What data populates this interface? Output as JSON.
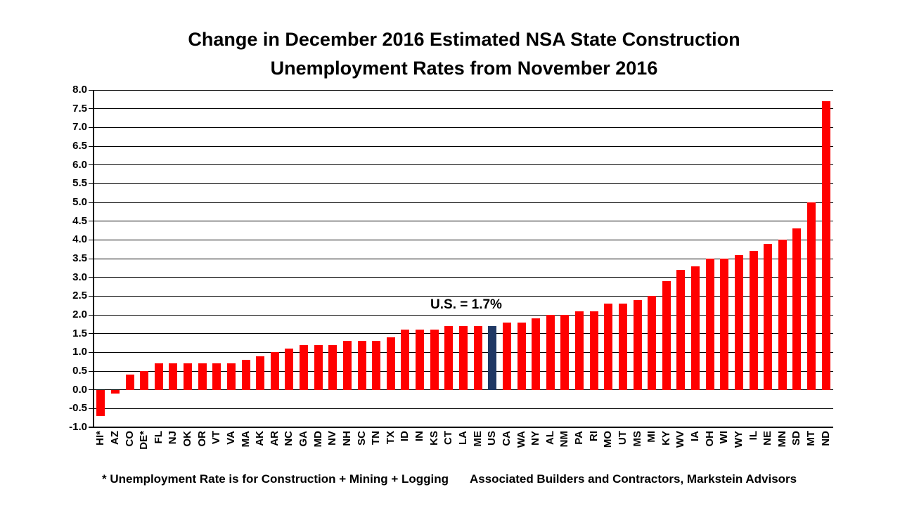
{
  "title": {
    "line1": "Change in December 2016 Estimated NSA State Construction",
    "line2": "Unemployment Rates from November 2016"
  },
  "chart_data": {
    "type": "bar",
    "title": "Change in December 2016 Estimated NSA State Construction Unemployment Rates from November 2016",
    "categories": [
      "HI*",
      "AZ",
      "CO",
      "DE*",
      "FL",
      "NJ",
      "OK",
      "OR",
      "VT",
      "VA",
      "MA",
      "AK",
      "AR",
      "NC",
      "GA",
      "MD",
      "NV",
      "NH",
      "SC",
      "TN",
      "TX",
      "ID",
      "IN",
      "KS",
      "CT",
      "LA",
      "ME",
      "US",
      "CA",
      "WA",
      "NY",
      "AL",
      "NM",
      "PA",
      "RI",
      "MO",
      "UT",
      "MS",
      "MI",
      "KY",
      "WV",
      "IA",
      "OH",
      "WI",
      "WY",
      "IL",
      "NE",
      "MN",
      "SD",
      "MT",
      "ND"
    ],
    "values": [
      -0.7,
      -0.1,
      0.4,
      0.5,
      0.7,
      0.7,
      0.7,
      0.7,
      0.7,
      0.7,
      0.8,
      0.9,
      1.0,
      1.1,
      1.2,
      1.2,
      1.2,
      1.3,
      1.3,
      1.3,
      1.4,
      1.6,
      1.6,
      1.6,
      1.7,
      1.7,
      1.7,
      1.7,
      1.8,
      1.8,
      1.9,
      2.0,
      2.0,
      2.1,
      2.1,
      2.3,
      2.3,
      2.4,
      2.5,
      2.9,
      3.2,
      3.3,
      3.5,
      3.5,
      3.6,
      3.7,
      3.9,
      4.0,
      4.3,
      5.0,
      7.7
    ],
    "xlabel": "",
    "ylabel": "",
    "ylim": [
      -1.0,
      8.0
    ],
    "ytick_step": 0.5,
    "grid": true,
    "legend": "none",
    "highlight_category": "US",
    "annotation": {
      "text": "U.S. = 1.7%",
      "attached_to": "US"
    },
    "colors": {
      "bar": "#ff0000",
      "highlight_bar": "#1f3864",
      "grid": "#000000",
      "text": "#000000",
      "background": "#ffffff"
    }
  },
  "footer": {
    "footnote": "* Unemployment Rate is for Construction + Mining + Logging",
    "source": "Associated Builders and Contractors, Markstein Advisors"
  }
}
